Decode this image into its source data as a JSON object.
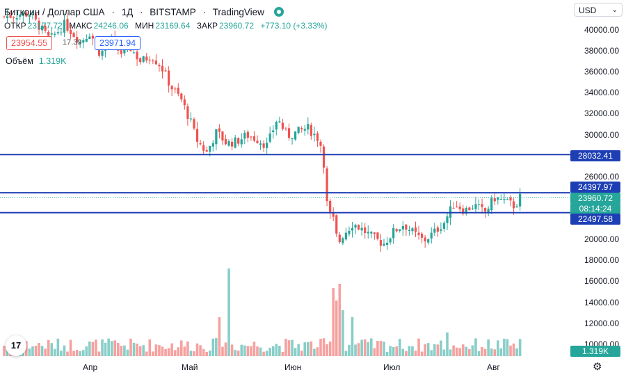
{
  "header": {
    "title": "Биткоин / Доллар США",
    "interval": "1Д",
    "exchange": "BITSTAMP",
    "source": "TradingView"
  },
  "ohlc": {
    "open_label": "ОТКР",
    "open": "23177.72",
    "high_label": "МАКС",
    "high": "24246.06",
    "low_label": "МИН",
    "low": "23169.64",
    "close_label": "ЗАКР",
    "close": "23960.72",
    "change": "+773.10 (+3.33%)"
  },
  "trade": {
    "sell": "23954.55",
    "spread": "17.39",
    "buy": "23971.94"
  },
  "volume": {
    "label": "Объём",
    "value": "1.319K"
  },
  "currency": {
    "label": "USD"
  },
  "price_axis": {
    "labels": [
      "40000.00",
      "38000.00",
      "36000.00",
      "34000.00",
      "32000.00",
      "30000.00",
      "26000.00",
      "20000.00",
      "18000.00",
      "16000.00",
      "14000.00",
      "12000.00",
      "10000.00"
    ]
  },
  "levels": {
    "upper": "28032.41",
    "middle": "24397.97",
    "lower": "22497.58"
  },
  "last_price": {
    "value": "23960.72",
    "countdown": "08:14:24"
  },
  "volume_tag": "1.319K",
  "time_axis": {
    "labels": [
      "Апр",
      "Май",
      "Июн",
      "Июл",
      "Авг"
    ]
  },
  "logo_text": "17",
  "colors": {
    "up": "#26a69a",
    "down": "#ef5350",
    "level": "#1e3fb4"
  },
  "chart_data": {
    "type": "candlestick",
    "title": "Биткоин / Доллар США",
    "interval": "1Д",
    "ylim": [
      10000,
      41500
    ],
    "horizontal_levels": [
      28032.41,
      24397.97,
      22497.58
    ],
    "x_ticks": [
      "Апр",
      "Май",
      "Июн",
      "Июл",
      "Авг"
    ],
    "approx_close_path": [
      [
        0,
        41200
      ],
      [
        25,
        41500
      ],
      [
        45,
        39000
      ],
      [
        60,
        40500
      ],
      [
        75,
        38800
      ],
      [
        85,
        39700
      ],
      [
        95,
        37600
      ],
      [
        105,
        39000
      ],
      [
        115,
        37700
      ],
      [
        125,
        38200
      ],
      [
        135,
        36900
      ],
      [
        145,
        37500
      ],
      [
        155,
        36500
      ],
      [
        165,
        34500
      ],
      [
        175,
        33300
      ],
      [
        185,
        31000
      ],
      [
        190,
        29500
      ],
      [
        200,
        28200
      ],
      [
        210,
        30200
      ],
      [
        220,
        29100
      ],
      [
        230,
        29300
      ],
      [
        240,
        29900
      ],
      [
        250,
        29500
      ],
      [
        260,
        28900
      ],
      [
        270,
        31500
      ],
      [
        280,
        29800
      ],
      [
        290,
        30200
      ],
      [
        300,
        30600
      ],
      [
        310,
        29600
      ],
      [
        315,
        28500
      ],
      [
        320,
        22300
      ],
      [
        325,
        22000
      ],
      [
        330,
        19500
      ],
      [
        335,
        20400
      ],
      [
        345,
        21500
      ],
      [
        355,
        20800
      ],
      [
        365,
        20100
      ],
      [
        375,
        19500
      ],
      [
        385,
        20700
      ],
      [
        395,
        21400
      ],
      [
        405,
        20500
      ],
      [
        415,
        19800
      ],
      [
        425,
        20600
      ],
      [
        435,
        21600
      ],
      [
        445,
        23400
      ],
      [
        455,
        22700
      ],
      [
        465,
        23200
      ],
      [
        475,
        22500
      ],
      [
        485,
        23900
      ],
      [
        495,
        23600
      ],
      [
        505,
        23100
      ],
      [
        510,
        23960
      ]
    ],
    "volume_unit": "K"
  }
}
